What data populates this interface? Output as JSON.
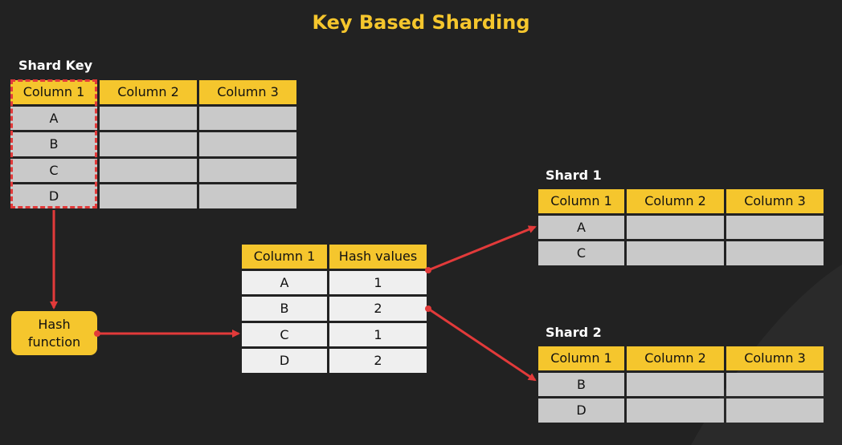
{
  "title": "Key Based Sharding",
  "shard_key_label": "Shard Key",
  "source_table": {
    "headers": [
      "Column 1",
      "Column 2",
      "Column 3"
    ],
    "rows": [
      [
        "A",
        "",
        ""
      ],
      [
        "B",
        "",
        ""
      ],
      [
        "C",
        "",
        ""
      ],
      [
        "D",
        "",
        ""
      ]
    ]
  },
  "hash_function": "Hash\nfunction",
  "hash_table": {
    "headers": [
      "Column 1",
      "Hash values"
    ],
    "rows": [
      [
        "A",
        "1"
      ],
      [
        "B",
        "2"
      ],
      [
        "C",
        "1"
      ],
      [
        "D",
        "2"
      ]
    ]
  },
  "shard1": {
    "label": "Shard 1",
    "headers": [
      "Column 1",
      "Column 2",
      "Column 3"
    ],
    "rows": [
      [
        "A",
        "",
        ""
      ],
      [
        "C",
        "",
        ""
      ]
    ]
  },
  "shard2": {
    "label": "Shard 2",
    "headers": [
      "Column 1",
      "Column 2",
      "Column 3"
    ],
    "rows": [
      [
        "B",
        "",
        ""
      ],
      [
        "D",
        "",
        ""
      ]
    ]
  },
  "colors": {
    "background": "#222222",
    "accent": "#f5c62d",
    "arrow": "#e23a3a",
    "cell": "#c9c9c9",
    "cell_light": "#efefef"
  }
}
